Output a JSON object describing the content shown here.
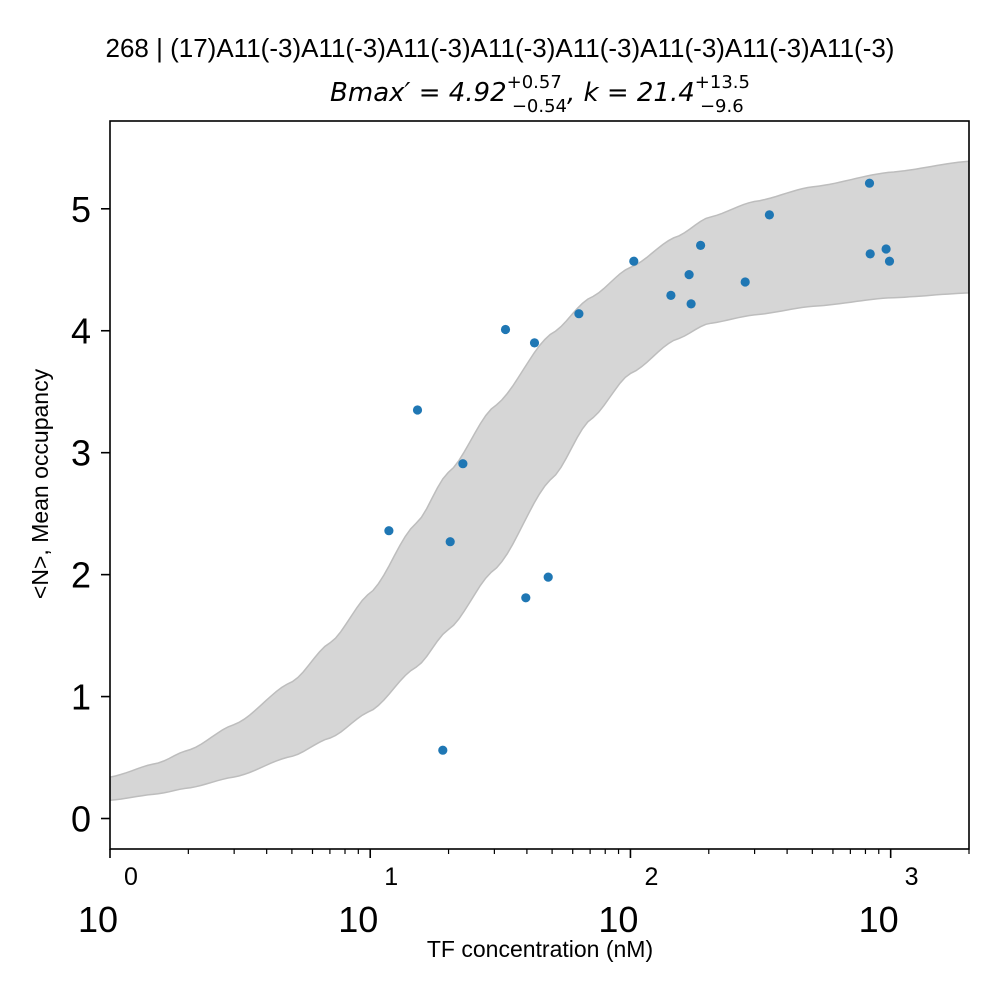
{
  "chart_data": {
    "type": "scatter",
    "title": "268 | (17)A11(-3)A11(-3)A11(-3)A11(-3)A11(-3)A11(-3)A11(-3)A11(-3)",
    "subtitle": {
      "bmax_label": "Bmax′ = 4.92",
      "bmax_sup": "+0.57",
      "bmax_sub": "−0.54",
      "k_label": ", k = 21.4",
      "k_sup": "+13.5",
      "k_sub": "−9.6"
    },
    "xlabel": "TF concentration (nM)",
    "ylabel": "<N>, Mean occupancy",
    "xscale": "log",
    "xlim": [
      1,
      2000
    ],
    "ylim": [
      -0.25,
      5.72
    ],
    "grid": false,
    "colors": {
      "points": "#1f77b4",
      "band_fill": "#d6d6d6",
      "band_edge": "#bdbdbd"
    },
    "x_ticks": [
      {
        "value": 1,
        "base": "10",
        "exp": "0"
      },
      {
        "value": 10,
        "base": "10",
        "exp": "1"
      },
      {
        "value": 100,
        "base": "10",
        "exp": "2"
      },
      {
        "value": 1000,
        "base": "10",
        "exp": "3"
      }
    ],
    "y_ticks": [
      {
        "value": 0,
        "label": "0"
      },
      {
        "value": 1,
        "label": "1"
      },
      {
        "value": 2,
        "label": "2"
      },
      {
        "value": 3,
        "label": "3"
      },
      {
        "value": 4,
        "label": "4"
      },
      {
        "value": 5,
        "label": "5"
      }
    ],
    "points": [
      {
        "x": 11.8,
        "y": 2.36
      },
      {
        "x": 15.2,
        "y": 3.35
      },
      {
        "x": 19.0,
        "y": 0.56
      },
      {
        "x": 20.3,
        "y": 2.27
      },
      {
        "x": 22.7,
        "y": 2.91
      },
      {
        "x": 33.1,
        "y": 4.01
      },
      {
        "x": 39.6,
        "y": 1.81
      },
      {
        "x": 42.8,
        "y": 3.9
      },
      {
        "x": 48.3,
        "y": 1.98
      },
      {
        "x": 63.4,
        "y": 4.14
      },
      {
        "x": 103.0,
        "y": 4.57
      },
      {
        "x": 143.0,
        "y": 4.29
      },
      {
        "x": 168.0,
        "y": 4.46
      },
      {
        "x": 171.0,
        "y": 4.22
      },
      {
        "x": 186.0,
        "y": 4.7
      },
      {
        "x": 276.0,
        "y": 4.4
      },
      {
        "x": 342.0,
        "y": 4.95
      },
      {
        "x": 829.0,
        "y": 5.21
      },
      {
        "x": 834.0,
        "y": 4.63
      },
      {
        "x": 960.0,
        "y": 4.67
      },
      {
        "x": 990.0,
        "y": 4.57
      }
    ],
    "band": {
      "x": [
        1,
        1.5,
        2,
        3,
        5,
        7,
        10,
        15,
        20,
        30,
        50,
        70,
        100,
        150,
        200,
        300,
        500,
        1000,
        2000
      ],
      "upper": [
        0.34,
        0.45,
        0.56,
        0.77,
        1.12,
        1.44,
        1.85,
        2.42,
        2.84,
        3.38,
        3.98,
        4.27,
        4.52,
        4.77,
        4.93,
        5.06,
        5.18,
        5.3,
        5.39
      ],
      "lower": [
        0.15,
        0.2,
        0.25,
        0.34,
        0.51,
        0.66,
        0.88,
        1.24,
        1.55,
        2.04,
        2.79,
        3.27,
        3.65,
        3.93,
        4.06,
        4.13,
        4.2,
        4.27,
        4.31
      ]
    }
  }
}
